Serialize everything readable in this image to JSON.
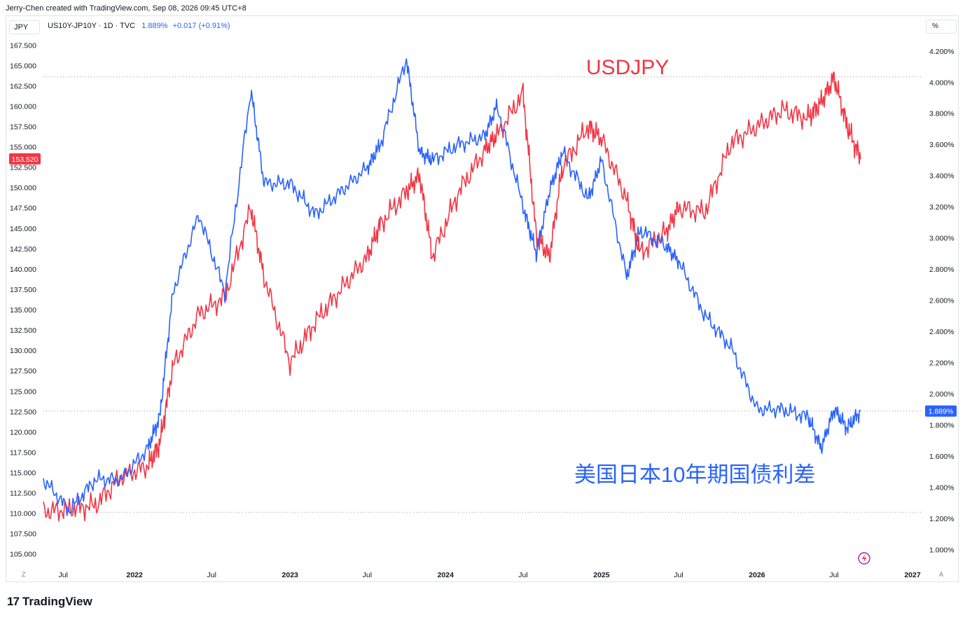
{
  "header": {
    "attribution": "Jerry-Chen created with TradingView.com, Sep 08, 2026 09:45 UTC+8",
    "currency_button": "JPY",
    "scale_button": "%",
    "symbol": "US10Y-JP10Y · 1D · TVC",
    "last_value": "1.889%",
    "change": "+0.017 (+0.91%)"
  },
  "footer": {
    "logo_text": "TradingView",
    "logo_mark": "17",
    "corner_left": "Z",
    "corner_right": "A"
  },
  "colors": {
    "usdjpy": "#f23645",
    "spread": "#2962ff",
    "grid_dotted": "#9598a1"
  },
  "chart_data": {
    "type": "line",
    "title": "",
    "x_ticks": [
      "Jul",
      "2022",
      "Jul",
      "2023",
      "Jul",
      "2024",
      "Jul",
      "2025",
      "Jul",
      "2026",
      "Jul",
      "2027"
    ],
    "left_axis": {
      "label": "JPY",
      "ticks": [
        "167.500",
        "165.000",
        "162.500",
        "160.000",
        "157.500",
        "155.000",
        "152.500",
        "150.000",
        "147.500",
        "145.000",
        "142.500",
        "140.000",
        "137.500",
        "135.000",
        "132.500",
        "130.000",
        "127.500",
        "125.000",
        "122.500",
        "120.000",
        "117.500",
        "115.000",
        "112.500",
        "110.000",
        "107.500",
        "105.000"
      ],
      "range": [
        104.2,
        168.3
      ],
      "last_label": "153.520"
    },
    "right_axis": {
      "label": "%",
      "ticks": [
        "4.200%",
        "4.000%",
        "3.800%",
        "3.600%",
        "3.400%",
        "3.200%",
        "3.000%",
        "2.800%",
        "2.600%",
        "2.400%",
        "2.200%",
        "2.000%",
        "1.800%",
        "1.600%",
        "1.400%",
        "1.200%",
        "1.000%"
      ],
      "range": [
        0.93,
        4.28
      ],
      "last_label": "1.889%"
    },
    "series": [
      {
        "name": "USDJPY",
        "axis": "left",
        "color": "#f23645",
        "x": [
          "2021-06",
          "2021-08",
          "2021-10",
          "2021-12",
          "2022-02",
          "2022-03",
          "2022-04",
          "2022-06",
          "2022-08",
          "2022-10",
          "2022-11",
          "2023-01",
          "2023-03",
          "2023-05",
          "2023-07",
          "2023-08",
          "2023-10",
          "2023-11",
          "2023-12",
          "2024-02",
          "2024-04",
          "2024-05",
          "2024-07",
          "2024-08",
          "2024-09",
          "2024-10",
          "2024-12",
          "2025-01",
          "2025-03",
          "2025-04",
          "2025-06",
          "2025-07",
          "2025-09",
          "2025-11",
          "2026-01",
          "2026-03",
          "2026-05",
          "2026-06",
          "2026-07",
          "2026-08",
          "2026-09"
        ],
        "values": [
          110.2,
          110.5,
          111.0,
          114.5,
          115.8,
          118.5,
          128.0,
          134.5,
          136.5,
          147.5,
          139.0,
          128.5,
          133.5,
          137.5,
          141.5,
          145.5,
          149.5,
          151.5,
          141.5,
          149.5,
          154.5,
          156.5,
          161.5,
          144.0,
          141.5,
          152.5,
          157.5,
          156.0,
          148.5,
          142.0,
          144.5,
          147.5,
          147.0,
          155.5,
          157.5,
          159.5,
          158.5,
          160.5,
          163.5,
          157.5,
          153.52
        ]
      },
      {
        "name": "US10Y-JP10Y",
        "axis": "right",
        "color": "#2962ff",
        "x": [
          "2021-06",
          "2021-08",
          "2021-10",
          "2021-12",
          "2022-02",
          "2022-03",
          "2022-04",
          "2022-06",
          "2022-08",
          "2022-10",
          "2022-11",
          "2023-01",
          "2023-03",
          "2023-05",
          "2023-07",
          "2023-08",
          "2023-10",
          "2023-11",
          "2023-12",
          "2024-02",
          "2024-04",
          "2024-05",
          "2024-07",
          "2024-08",
          "2024-09",
          "2024-10",
          "2024-12",
          "2025-01",
          "2025-03",
          "2025-04",
          "2025-06",
          "2025-07",
          "2025-09",
          "2025-11",
          "2026-01",
          "2026-03",
          "2026-05",
          "2026-06",
          "2026-07",
          "2026-08",
          "2026-09"
        ],
        "values": [
          1.45,
          1.25,
          1.45,
          1.45,
          1.65,
          1.85,
          2.65,
          3.15,
          2.65,
          3.95,
          3.35,
          3.35,
          3.15,
          3.3,
          3.45,
          3.6,
          4.15,
          3.55,
          3.5,
          3.6,
          3.65,
          3.85,
          3.2,
          2.9,
          3.3,
          3.55,
          3.25,
          3.5,
          2.75,
          3.05,
          2.95,
          2.85,
          2.5,
          2.3,
          1.9,
          1.9,
          1.85,
          1.65,
          1.9,
          1.78,
          1.889
        ]
      }
    ],
    "annotations": [
      {
        "text": "USDJPY",
        "color": "#f23645"
      },
      {
        "text": "美国日本10年期国债利差",
        "color": "#2962ff"
      }
    ],
    "grid": false,
    "legend": "none"
  }
}
